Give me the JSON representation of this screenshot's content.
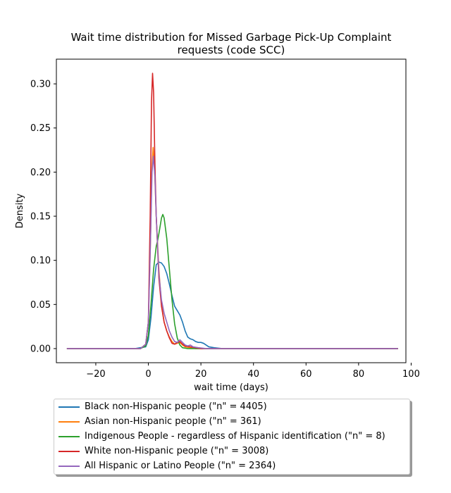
{
  "chart_data": {
    "type": "line",
    "title": "Wait time distribution  for Missed Garbage Pick-Up Complaint requests (code SCC)",
    "title_lines": [
      "Wait time distribution  for Missed Garbage Pick-Up Complaint",
      "requests (code SCC)"
    ],
    "xlabel": "wait time (days)",
    "ylabel": "Density",
    "xlim": [
      -35,
      98
    ],
    "ylim": [
      -0.016,
      0.328
    ],
    "xticks": [
      -20,
      0,
      20,
      40,
      60,
      80,
      100
    ],
    "yticks": [
      0.0,
      0.05,
      0.1,
      0.15,
      0.2,
      0.25,
      0.3
    ],
    "xtick_labels": [
      "−20",
      "0",
      "20",
      "40",
      "60",
      "80",
      "100"
    ],
    "ytick_labels": [
      "0.00",
      "0.05",
      "0.10",
      "0.15",
      "0.20",
      "0.25",
      "0.30"
    ],
    "grid": false,
    "legend_position": "below",
    "series": [
      {
        "name": "Black non-Hispanic people (\"n\" = 4405)",
        "color": "#1f77b4",
        "points": [
          [
            -31,
            0
          ],
          [
            -5,
            0
          ],
          [
            -1,
            0.002
          ],
          [
            0,
            0.01
          ],
          [
            1,
            0.035
          ],
          [
            2,
            0.07
          ],
          [
            3,
            0.095
          ],
          [
            4,
            0.098
          ],
          [
            5,
            0.097
          ],
          [
            6,
            0.093
          ],
          [
            7,
            0.085
          ],
          [
            8,
            0.073
          ],
          [
            9,
            0.06
          ],
          [
            10,
            0.048
          ],
          [
            11,
            0.043
          ],
          [
            12,
            0.038
          ],
          [
            13,
            0.03
          ],
          [
            14,
            0.02
          ],
          [
            15,
            0.013
          ],
          [
            16,
            0.011
          ],
          [
            17,
            0.01
          ],
          [
            18,
            0.008
          ],
          [
            19,
            0.007
          ],
          [
            20,
            0.007
          ],
          [
            21,
            0.006
          ],
          [
            22,
            0.004
          ],
          [
            23,
            0.002
          ],
          [
            25,
            0.001
          ],
          [
            28,
            0
          ],
          [
            95,
            0
          ]
        ]
      },
      {
        "name": "Asian non-Hispanic people (\"n\" = 361)",
        "color": "#ff7f0e",
        "points": [
          [
            -31,
            0
          ],
          [
            -3,
            0
          ],
          [
            -1,
            0.005
          ],
          [
            0,
            0.03
          ],
          [
            0.8,
            0.12
          ],
          [
            1.3,
            0.2
          ],
          [
            1.8,
            0.228
          ],
          [
            2.3,
            0.21
          ],
          [
            3,
            0.15
          ],
          [
            4,
            0.09
          ],
          [
            5,
            0.05
          ],
          [
            6,
            0.03
          ],
          [
            7,
            0.02
          ],
          [
            8,
            0.013
          ],
          [
            9,
            0.008
          ],
          [
            10,
            0.005
          ],
          [
            11,
            0.006
          ],
          [
            12,
            0.007
          ],
          [
            13,
            0.004
          ],
          [
            14,
            0.002
          ],
          [
            16,
            0.001
          ],
          [
            18,
            0
          ],
          [
            95,
            0
          ]
        ]
      },
      {
        "name": "Indigenous People - regardless of Hispanic identification (\"n\" = 8)",
        "color": "#2ca02c",
        "points": [
          [
            -31,
            0
          ],
          [
            -3,
            0
          ],
          [
            -1,
            0.003
          ],
          [
            0,
            0.015
          ],
          [
            1,
            0.05
          ],
          [
            2,
            0.09
          ],
          [
            3,
            0.116
          ],
          [
            3.5,
            0.122
          ],
          [
            4,
            0.13
          ],
          [
            5,
            0.148
          ],
          [
            5.5,
            0.152
          ],
          [
            6,
            0.148
          ],
          [
            7,
            0.125
          ],
          [
            8,
            0.09
          ],
          [
            9,
            0.055
          ],
          [
            10,
            0.028
          ],
          [
            11,
            0.012
          ],
          [
            12,
            0.004
          ],
          [
            13,
            0.001
          ],
          [
            15,
            0
          ],
          [
            95,
            0
          ]
        ]
      },
      {
        "name": "White non-Hispanic people (\"n\" = 3008)",
        "color": "#d62728",
        "points": [
          [
            -31,
            0
          ],
          [
            -3,
            0
          ],
          [
            -1,
            0.005
          ],
          [
            0,
            0.03
          ],
          [
            0.7,
            0.15
          ],
          [
            1.2,
            0.28
          ],
          [
            1.6,
            0.312
          ],
          [
            2,
            0.29
          ],
          [
            2.5,
            0.21
          ],
          [
            3,
            0.15
          ],
          [
            4,
            0.08
          ],
          [
            5,
            0.048
          ],
          [
            6,
            0.03
          ],
          [
            7,
            0.02
          ],
          [
            8,
            0.012
          ],
          [
            9,
            0.006
          ],
          [
            10,
            0.005
          ],
          [
            11,
            0.007
          ],
          [
            12,
            0.008
          ],
          [
            13,
            0.005
          ],
          [
            14,
            0.003
          ],
          [
            16,
            0.002
          ],
          [
            18,
            0.001
          ],
          [
            20,
            0
          ],
          [
            95,
            0
          ]
        ]
      },
      {
        "name": "All Hispanic or Latino People (\"n\" = 2364)",
        "color": "#9467bd",
        "points": [
          [
            -31,
            0
          ],
          [
            -3,
            0
          ],
          [
            -1,
            0.005
          ],
          [
            0,
            0.03
          ],
          [
            0.8,
            0.12
          ],
          [
            1.4,
            0.2
          ],
          [
            1.9,
            0.218
          ],
          [
            2.5,
            0.195
          ],
          [
            3,
            0.15
          ],
          [
            4,
            0.085
          ],
          [
            5,
            0.055
          ],
          [
            6,
            0.04
          ],
          [
            7,
            0.03
          ],
          [
            8,
            0.02
          ],
          [
            9,
            0.013
          ],
          [
            10,
            0.008
          ],
          [
            11,
            0.007
          ],
          [
            12,
            0.01
          ],
          [
            13,
            0.007
          ],
          [
            14,
            0.004
          ],
          [
            15,
            0.003
          ],
          [
            16,
            0.004
          ],
          [
            17,
            0.002
          ],
          [
            19,
            0.001
          ],
          [
            22,
            0
          ],
          [
            95,
            0
          ]
        ]
      }
    ]
  }
}
